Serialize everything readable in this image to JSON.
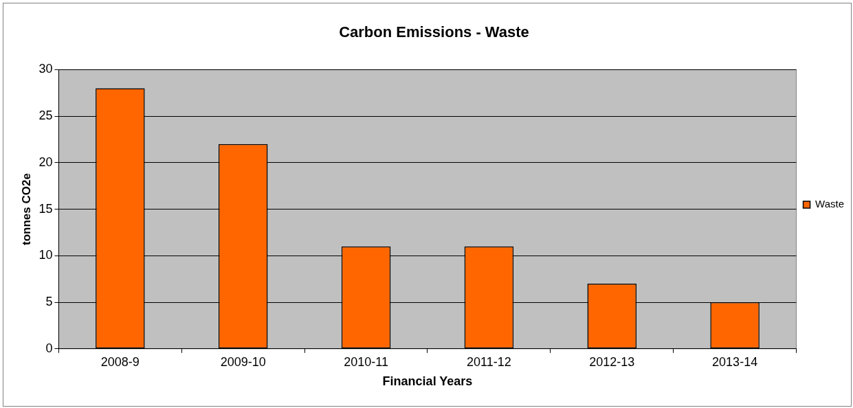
{
  "chart_data": {
    "type": "bar",
    "title": "Carbon Emissions - Waste",
    "xlabel": "Financial Years",
    "ylabel": "tonnes CO2e",
    "categories": [
      "2008-9",
      "2009-10",
      "2010-11",
      "2011-12",
      "2012-13",
      "2013-14"
    ],
    "series": [
      {
        "name": "Waste",
        "color": "#ff6600",
        "values": [
          28,
          22,
          11,
          11,
          7,
          5
        ]
      }
    ],
    "ylim": [
      0,
      30
    ],
    "yticks": [
      0,
      5,
      10,
      15,
      20,
      25,
      30
    ],
    "grid": "y",
    "legend": "right"
  }
}
